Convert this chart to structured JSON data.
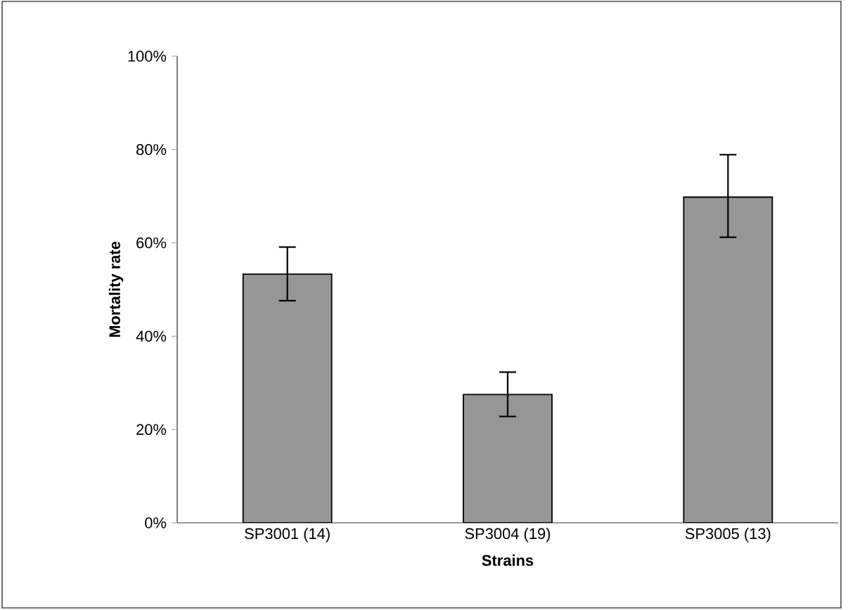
{
  "chart_data": {
    "type": "bar",
    "xlabel": "Strains",
    "ylabel": "Mortality rate",
    "categories": [
      "SP3001 (14)",
      "SP3004 (19)",
      "SP3005 (13)"
    ],
    "values": [
      53.3,
      27.5,
      69.8
    ],
    "errors": [
      [
        47.6,
        59.1
      ],
      [
        22.8,
        32.3
      ],
      [
        61.2,
        78.9
      ]
    ],
    "color": "#969696",
    "ylim": [
      0,
      100
    ],
    "yticks": [
      {
        "value": 0,
        "label": "0%"
      },
      {
        "value": 20,
        "label": "20%"
      },
      {
        "value": 40,
        "label": "40%"
      },
      {
        "value": 60,
        "label": "60%"
      },
      {
        "value": 80,
        "label": "80%"
      },
      {
        "value": 100,
        "label": "100%"
      }
    ],
    "grid": false
  }
}
